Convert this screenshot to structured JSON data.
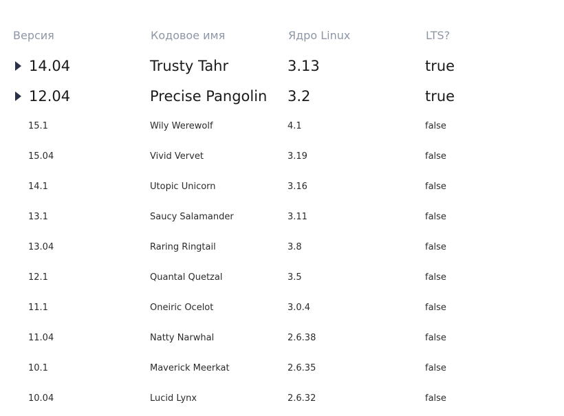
{
  "headers": {
    "version": "Версия",
    "codename": "Кодовое имя",
    "kernel": "Ядро Linux",
    "lts": "LTS?"
  },
  "rows": [
    {
      "version": "14.04",
      "codename": "Trusty Tahr",
      "kernel": "3.13",
      "lts": "true",
      "expandable": true
    },
    {
      "version": "12.04",
      "codename": "Precise Pangolin",
      "kernel": "3.2",
      "lts": "true",
      "expandable": true
    },
    {
      "version": "15.1",
      "codename": "Wily Werewolf",
      "kernel": "4.1",
      "lts": "false",
      "expandable": false
    },
    {
      "version": "15.04",
      "codename": "Vivid Vervet",
      "kernel": "3.19",
      "lts": "false",
      "expandable": false
    },
    {
      "version": "14.1",
      "codename": "Utopic Unicorn",
      "kernel": "3.16",
      "lts": "false",
      "expandable": false
    },
    {
      "version": "13.1",
      "codename": "Saucy Salamander",
      "kernel": "3.11",
      "lts": "false",
      "expandable": false
    },
    {
      "version": "13.04",
      "codename": "Raring Ringtail",
      "kernel": "3.8",
      "lts": "false",
      "expandable": false
    },
    {
      "version": "12.1",
      "codename": "Quantal Quetzal",
      "kernel": "3.5",
      "lts": "false",
      "expandable": false
    },
    {
      "version": "11.1",
      "codename": "Oneiric Ocelot",
      "kernel": "3.0.4",
      "lts": "false",
      "expandable": false
    },
    {
      "version": "11.04",
      "codename": "Natty Narwhal",
      "kernel": "2.6.38",
      "lts": "false",
      "expandable": false
    },
    {
      "version": "10.1",
      "codename": "Maverick Meerkat",
      "kernel": "2.6.35",
      "lts": "false",
      "expandable": false
    },
    {
      "version": "10.04",
      "codename": "Lucid Lynx",
      "kernel": "2.6.32",
      "lts": "false",
      "expandable": false
    }
  ],
  "icons": {
    "expand": "caret-right-icon"
  },
  "colors": {
    "header_text": "#8e96a6",
    "caret": "#2c3245"
  }
}
